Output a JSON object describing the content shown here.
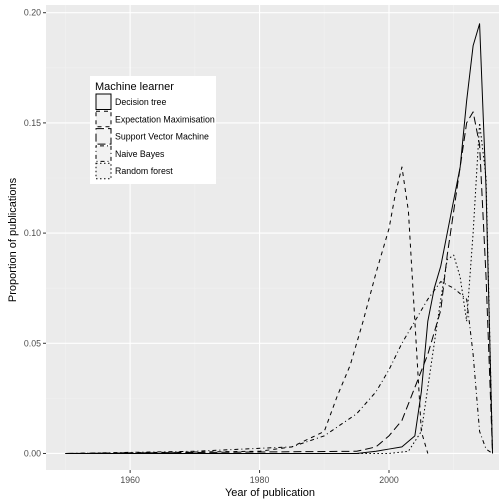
{
  "chart_data": {
    "type": "line",
    "xlabel": "Year of publication",
    "ylabel": "Proportion of publications",
    "xlim": [
      1947,
      2017
    ],
    "ylim": [
      -0.0075,
      0.2035
    ],
    "x_ticks": [
      1960,
      1980,
      2000
    ],
    "x_tick_labels": [
      "1960",
      "1980",
      "2000"
    ],
    "y_ticks": [
      0.0,
      0.05,
      0.1,
      0.15,
      0.2
    ],
    "y_tick_labels": [
      "0.00",
      "0.05",
      "0.10",
      "0.15",
      "0.20"
    ],
    "grid": true,
    "legend": {
      "title": "Machine learner",
      "position": "top-left"
    },
    "series": [
      {
        "name": "Decision tree",
        "linetype": "solid",
        "x": [
          1950,
          1995,
          1998,
          2000,
          2002,
          2004,
          2005,
          2006,
          2007,
          2008,
          2009,
          2010,
          2011,
          2012,
          2013,
          2014,
          2015,
          2016
        ],
        "y": [
          0,
          0,
          0.001,
          0.002,
          0.003,
          0.008,
          0.028,
          0.06,
          0.075,
          0.085,
          0.1,
          0.115,
          0.13,
          0.16,
          0.185,
          0.195,
          0.12,
          0
        ]
      },
      {
        "name": "Expectation Maximisation",
        "linetype": "dashed",
        "x": [
          1950,
          1980,
          1985,
          1990,
          1992,
          1994,
          1996,
          1998,
          2000,
          2001,
          2002,
          2003,
          2004,
          2005,
          2006
        ],
        "y": [
          0,
          0.001,
          0.003,
          0.01,
          0.026,
          0.04,
          0.06,
          0.082,
          0.102,
          0.118,
          0.13,
          0.11,
          0.06,
          0.01,
          0
        ]
      },
      {
        "name": "Support Vector Machine",
        "linetype": "longdash",
        "x": [
          1950,
          1995,
          1998,
          2000,
          2002,
          2004,
          2006,
          2008,
          2009,
          2010,
          2011,
          2012,
          2013,
          2014,
          2015,
          2016
        ],
        "y": [
          0,
          0.001,
          0.003,
          0.008,
          0.015,
          0.03,
          0.045,
          0.065,
          0.09,
          0.11,
          0.13,
          0.15,
          0.155,
          0.14,
          0.08,
          0
        ]
      },
      {
        "name": "Naive Bayes",
        "linetype": "dotdash",
        "x": [
          1950,
          1970,
          1985,
          1990,
          1992,
          1995,
          1998,
          2000,
          2002,
          2003,
          2004,
          2006,
          2008,
          2010,
          2012,
          2013,
          2014,
          2015,
          2016
        ],
        "y": [
          0,
          0.001,
          0.003,
          0.008,
          0.012,
          0.018,
          0.028,
          0.038,
          0.05,
          0.055,
          0.06,
          0.07,
          0.078,
          0.075,
          0.07,
          0.045,
          0.01,
          0.002,
          0
        ]
      },
      {
        "name": "Random forest",
        "linetype": "dotted",
        "x": [
          1950,
          2000,
          2003,
          2005,
          2006,
          2007,
          2008,
          2009,
          2010,
          2011,
          2012,
          2013,
          2014,
          2015,
          2016
        ],
        "y": [
          0,
          0,
          0.001,
          0.01,
          0.03,
          0.05,
          0.07,
          0.088,
          0.09,
          0.08,
          0.06,
          0.1,
          0.15,
          0.125,
          0
        ]
      }
    ]
  }
}
